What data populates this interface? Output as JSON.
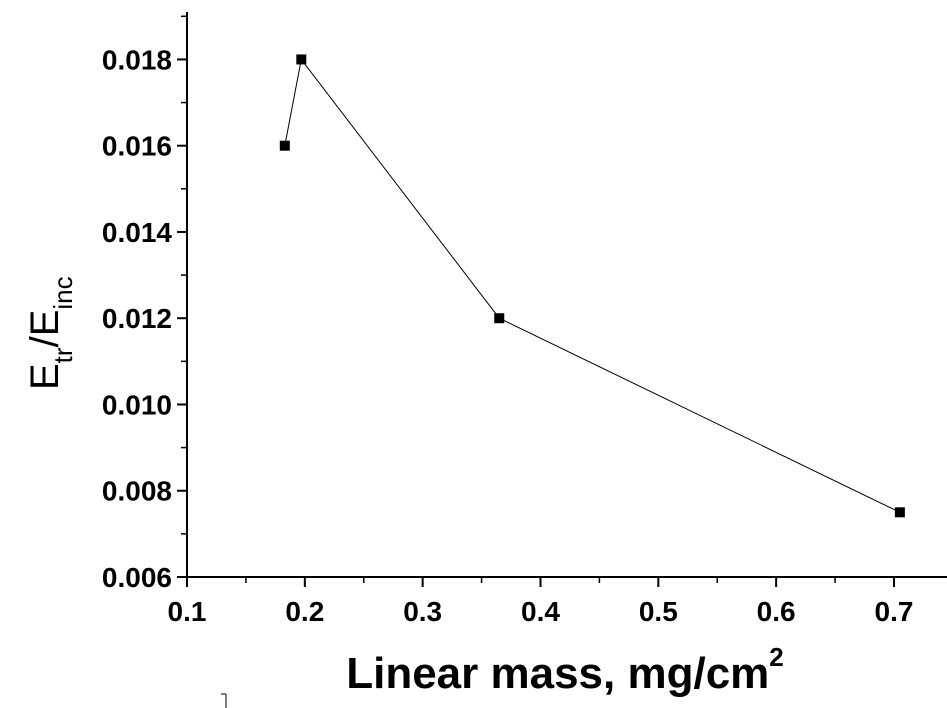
{
  "chart_data": {
    "type": "line",
    "x": [
      0.183,
      0.197,
      0.365,
      0.705
    ],
    "y": [
      0.016,
      0.018,
      0.012,
      0.0075
    ],
    "xlim": [
      0.1,
      0.745
    ],
    "ylim": [
      0.006,
      0.0191
    ],
    "xticks": [
      0.1,
      0.2,
      0.3,
      0.4,
      0.5,
      0.6,
      0.7
    ],
    "xtick_labels": [
      "0.1",
      "0.2",
      "0.3",
      "0.4",
      "0.5",
      "0.6",
      "0.7"
    ],
    "yticks": [
      0.006,
      0.008,
      0.01,
      0.012,
      0.014,
      0.016,
      0.018
    ],
    "ytick_labels": [
      "0.006",
      "0.008",
      "0.010",
      "0.012",
      "0.014",
      "0.016",
      "0.018"
    ],
    "xlabel": {
      "main": "Linear mass, mg/cm",
      "sup": "2"
    },
    "ylabel": {
      "e1": "E",
      "sub1": "tr",
      "slash": "/E",
      "sub2": "inc"
    },
    "marker": "square",
    "grid": false,
    "line_color": "#000000",
    "marker_color": "#000000"
  }
}
